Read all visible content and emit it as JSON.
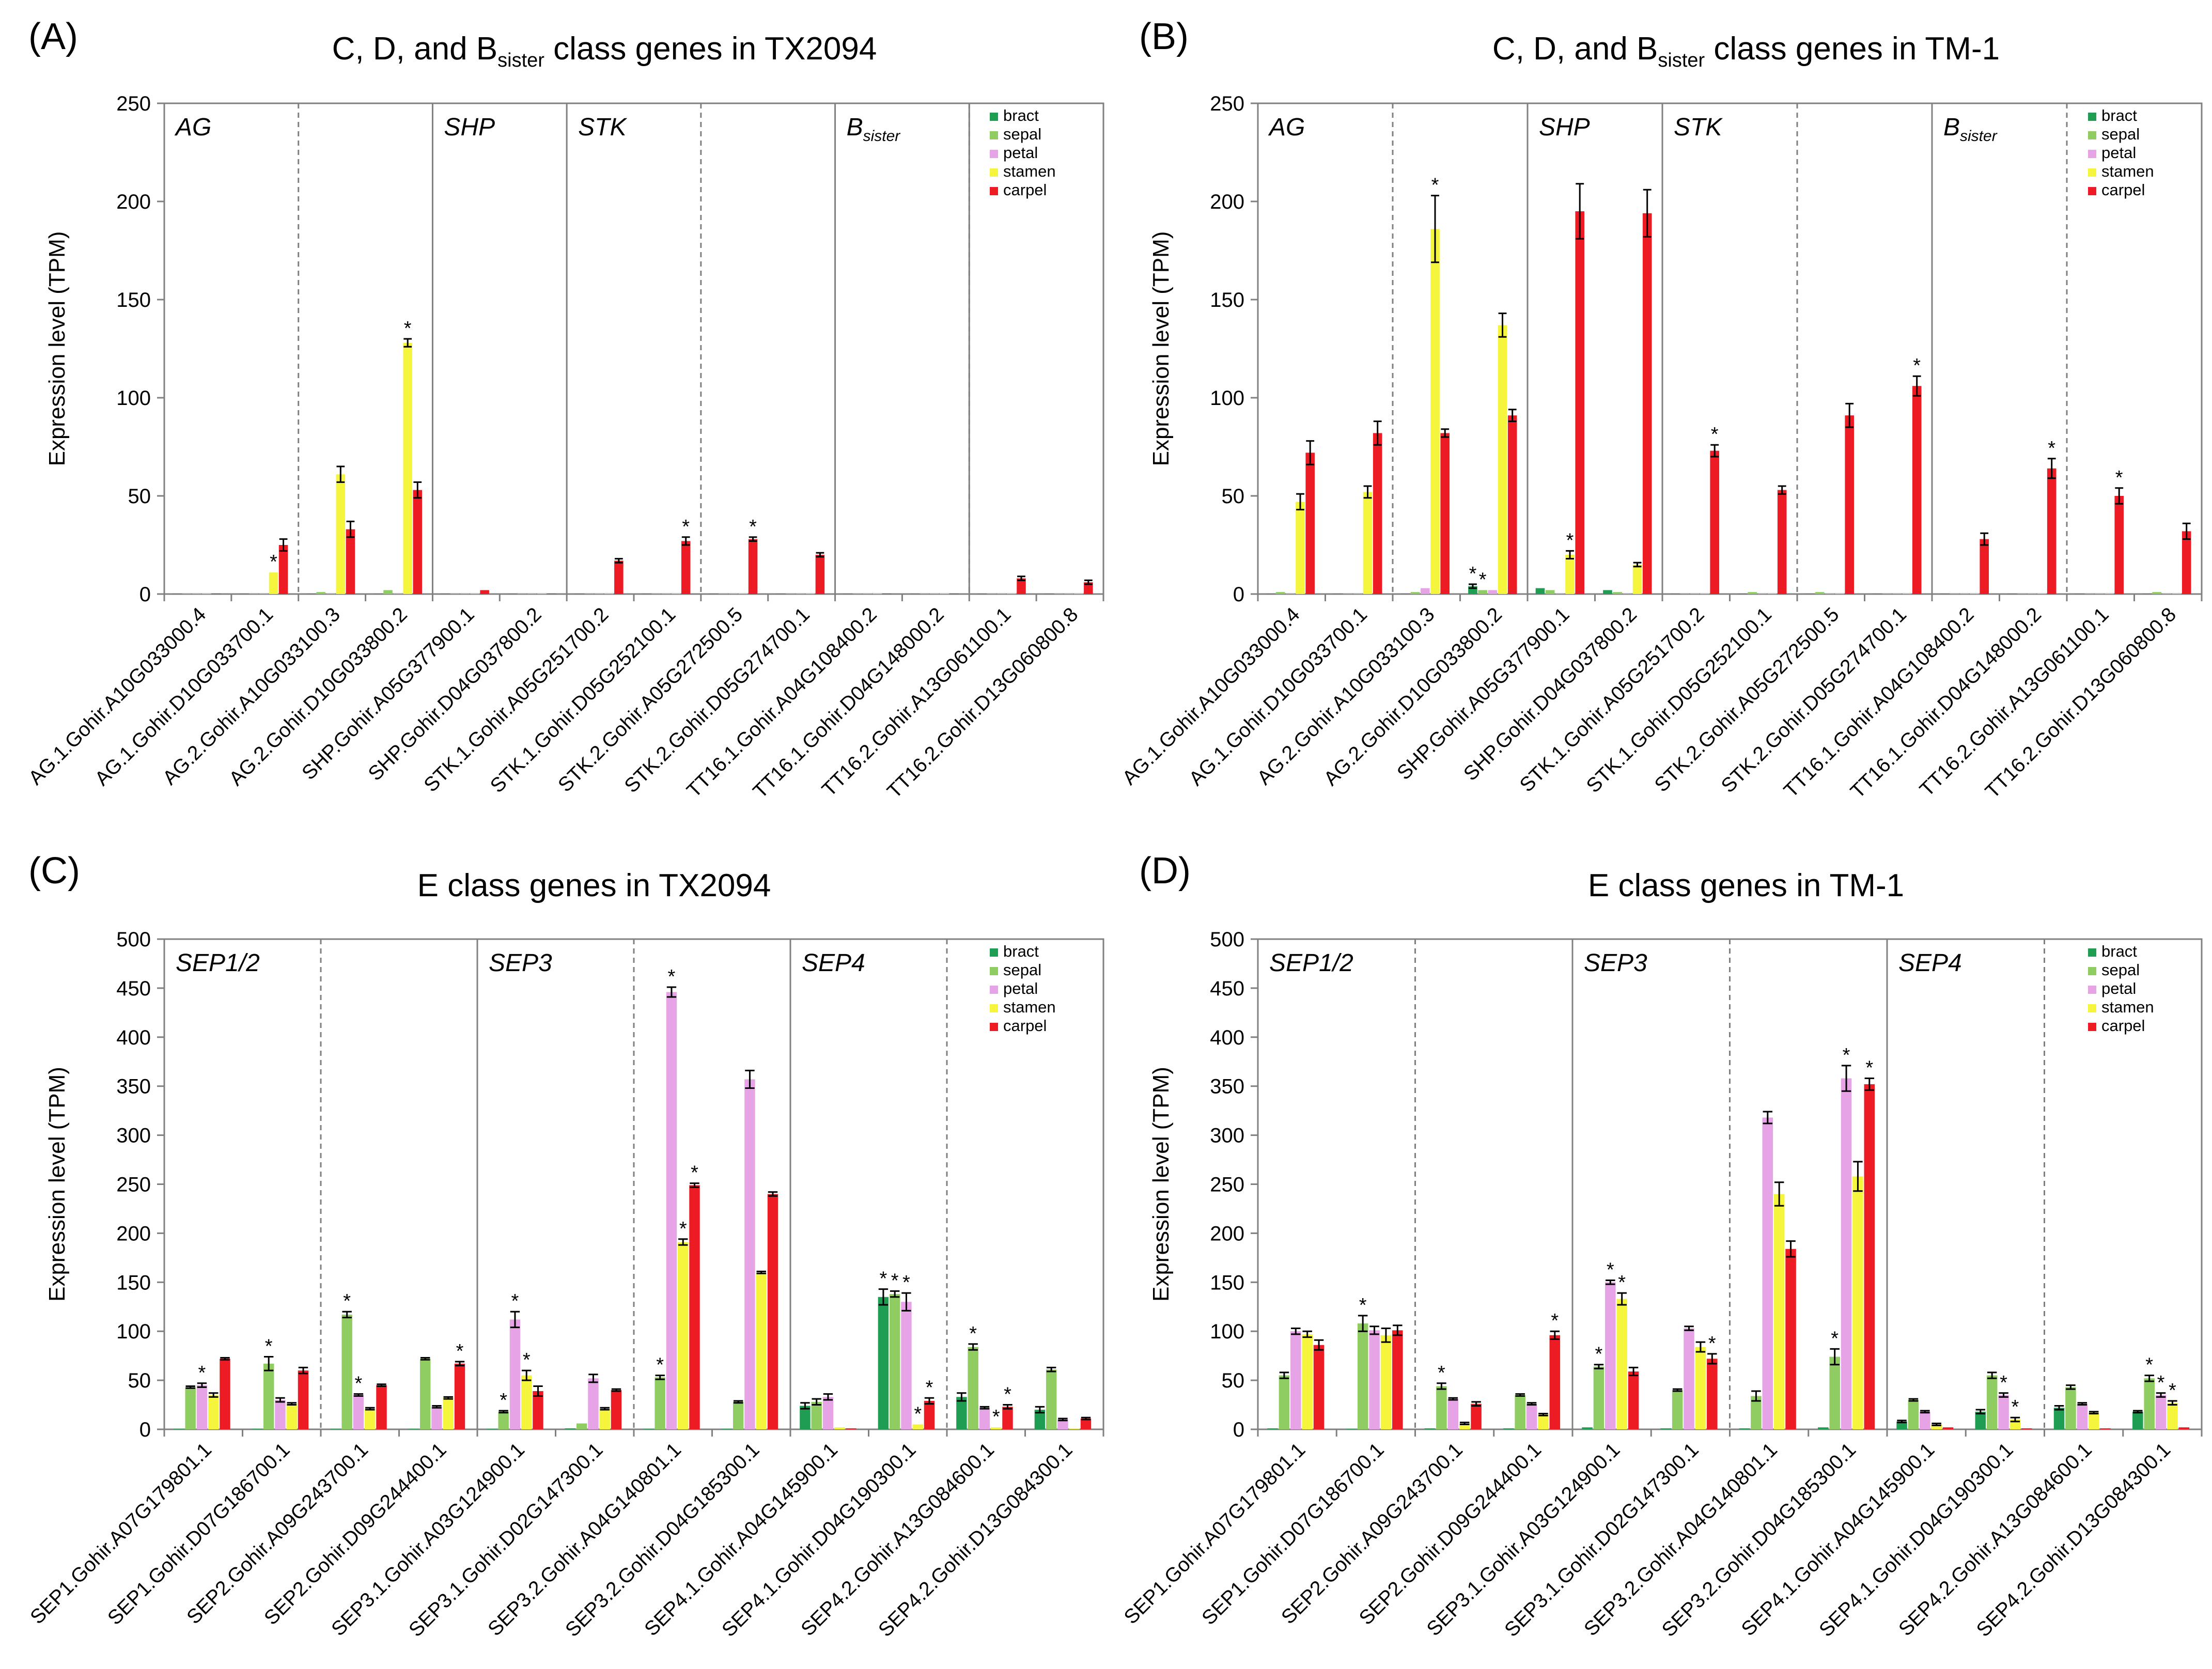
{
  "colors": {
    "bract": "#1f9e53",
    "sepal": "#8fcc62",
    "petal": "#e6a3e6",
    "stamen": "#f5f53d",
    "carpel": "#ed1c24",
    "axis": "#808080",
    "errorbar": "#000000"
  },
  "chart_data": [
    {
      "panel": "(A)",
      "type": "bar",
      "title_main": "C, D, and B",
      "title_sub": "sister",
      "title_end": " class genes in TX2094",
      "ylabel": "Expression level (TPM)",
      "ylim": [
        0,
        250
      ],
      "yticks": [
        0,
        50,
        100,
        150,
        200,
        250
      ],
      "legend": [
        "bract",
        "sepal",
        "petal",
        "stamen",
        "carpel"
      ],
      "legend_position": "top-right",
      "categories": [
        "AG.1.Gohir.A10G033000.4",
        "AG.1.Gohir.D10G033700.1",
        "AG.2.Gohir.A10G033100.3",
        "AG.2.Gohir.D10G033800.2",
        "SHP.Gohir.A05G377900.1",
        "SHP.Gohir.D04G037800.2",
        "STK.1.Gohir.A05G251700.2",
        "STK.1.Gohir.D05G252100.1",
        "STK.2.Gohir.A05G272500.5",
        "STK.2.Gohir.D05G274700.1",
        "TT16.1.Gohir.A04G108400.2",
        "TT16.1.Gohir.D04G148000.2",
        "TT16.2.Gohir.A13G061100.1",
        "TT16.2.Gohir.D13G060800.8"
      ],
      "groups": [
        {
          "label": "AG",
          "sub": "",
          "start": 0
        },
        {
          "label": "SHP",
          "sub": "",
          "start": 4
        },
        {
          "label": "STK",
          "sub": "",
          "start": 6
        },
        {
          "label": "B",
          "sub": "sister",
          "start": 10
        }
      ],
      "solid_dividers": [
        4,
        6,
        10,
        12
      ],
      "dashed_dividers": [
        2,
        8,
        12
      ],
      "series": [
        {
          "name": "bract",
          "values": [
            0,
            0,
            0,
            0,
            0,
            0,
            0,
            0,
            0,
            0,
            0,
            0,
            0,
            0
          ]
        },
        {
          "name": "sepal",
          "values": [
            0,
            0,
            1,
            2,
            0,
            0,
            0,
            0,
            0,
            0,
            0,
            0,
            0,
            0
          ]
        },
        {
          "name": "petal",
          "values": [
            0,
            0,
            0,
            0,
            0,
            0,
            0,
            0,
            0,
            0,
            0,
            0,
            0,
            0
          ]
        },
        {
          "name": "stamen",
          "values": [
            0,
            11,
            61,
            128,
            0,
            0,
            0,
            0,
            0,
            0,
            0,
            0,
            0,
            0
          ]
        },
        {
          "name": "carpel",
          "values": [
            0,
            25,
            33,
            53,
            2,
            0,
            17,
            27,
            28,
            20,
            0,
            0,
            8,
            6
          ]
        }
      ],
      "errors": [
        [
          0,
          0,
          0,
          0,
          0,
          0,
          0,
          0,
          0,
          0,
          0,
          0,
          0,
          0
        ],
        [
          0,
          0,
          0,
          0,
          0,
          0,
          0,
          0,
          0,
          0,
          0,
          0,
          0,
          0
        ],
        [
          0,
          0,
          0,
          0,
          0,
          0,
          0,
          0,
          0,
          0,
          0,
          0,
          0,
          0
        ],
        [
          0,
          0,
          4,
          2,
          0,
          0,
          0,
          0,
          0,
          0,
          0,
          0,
          0,
          0
        ],
        [
          0,
          3,
          4,
          4,
          0,
          0,
          1,
          2,
          1,
          1,
          0,
          0,
          1,
          1
        ]
      ],
      "stars": [
        [
          1,
          3
        ],
        [
          3,
          3
        ],
        [
          7,
          4
        ],
        [
          8,
          4
        ]
      ]
    },
    {
      "panel": "(B)",
      "type": "bar",
      "title_main": "C, D, and B",
      "title_sub": "sister",
      "title_end": " class genes in TM-1",
      "ylabel": "Expression level (TPM)",
      "ylim": [
        0,
        250
      ],
      "yticks": [
        0,
        50,
        100,
        150,
        200,
        250
      ],
      "legend": [
        "bract",
        "sepal",
        "petal",
        "stamen",
        "carpel"
      ],
      "legend_position": "top-right",
      "categories": [
        "AG.1.Gohir.A10G033000.4",
        "AG.1.Gohir.D10G033700.1",
        "AG.2.Gohir.A10G033100.3",
        "AG.2.Gohir.D10G033800.2",
        "SHP.Gohir.A05G377900.1",
        "SHP.Gohir.D04G037800.2",
        "STK.1.Gohir.A05G251700.2",
        "STK.1.Gohir.D05G252100.1",
        "STK.2.Gohir.A05G272500.5",
        "STK.2.Gohir.D05G274700.1",
        "TT16.1.Gohir.A04G108400.2",
        "TT16.1.Gohir.D04G148000.2",
        "TT16.2.Gohir.A13G061100.1",
        "TT16.2.Gohir.D13G060800.8"
      ],
      "groups": [
        {
          "label": "AG",
          "sub": "",
          "start": 0
        },
        {
          "label": "SHP",
          "sub": "",
          "start": 4
        },
        {
          "label": "STK",
          "sub": "",
          "start": 6
        },
        {
          "label": "B",
          "sub": "sister",
          "start": 10
        }
      ],
      "solid_dividers": [
        4,
        6,
        10
      ],
      "dashed_dividers": [
        2,
        8,
        12
      ],
      "series": [
        {
          "name": "bract",
          "values": [
            0,
            0,
            0,
            4,
            3,
            2,
            0,
            0,
            0,
            0,
            0,
            0,
            0,
            0
          ]
        },
        {
          "name": "sepal",
          "values": [
            1,
            0,
            1,
            2,
            2,
            1,
            0,
            1,
            1,
            0,
            0,
            0,
            0,
            1
          ]
        },
        {
          "name": "petal",
          "values": [
            0,
            0,
            3,
            2,
            0,
            0,
            0,
            0,
            0,
            0,
            0,
            0,
            0,
            0
          ]
        },
        {
          "name": "stamen",
          "values": [
            47,
            52,
            186,
            137,
            20,
            15,
            0,
            0,
            0,
            0,
            0,
            0,
            0,
            0
          ]
        },
        {
          "name": "carpel",
          "values": [
            72,
            82,
            82,
            91,
            195,
            194,
            73,
            53,
            91,
            106,
            28,
            64,
            50,
            32
          ]
        }
      ],
      "errors": [
        [
          0,
          0,
          0,
          1,
          0,
          0,
          0,
          0,
          0,
          0,
          0,
          0,
          0,
          0
        ],
        [
          0,
          0,
          0,
          0,
          0,
          0,
          0,
          0,
          0,
          0,
          0,
          0,
          0,
          0
        ],
        [
          0,
          0,
          0,
          0,
          0,
          0,
          0,
          0,
          0,
          0,
          0,
          0,
          0,
          0
        ],
        [
          4,
          3,
          17,
          6,
          2,
          1,
          0,
          0,
          0,
          0,
          0,
          0,
          0,
          0
        ],
        [
          6,
          6,
          2,
          3,
          14,
          12,
          3,
          2,
          6,
          5,
          3,
          5,
          4,
          4
        ]
      ],
      "stars": [
        [
          2,
          3
        ],
        [
          3,
          0
        ],
        [
          3,
          1
        ],
        [
          4,
          3
        ],
        [
          6,
          4
        ],
        [
          9,
          4
        ],
        [
          11,
          4
        ],
        [
          12,
          4
        ]
      ]
    },
    {
      "panel": "(C)",
      "type": "bar",
      "title_main": "E class genes in TX2094",
      "title_sub": "",
      "title_end": "",
      "ylabel": "Expression level (TPM)",
      "ylim": [
        0,
        500
      ],
      "yticks": [
        0,
        50,
        100,
        150,
        200,
        250,
        300,
        350,
        400,
        450,
        500
      ],
      "legend": [
        "bract",
        "sepal",
        "petal",
        "stamen",
        "carpel"
      ],
      "legend_position": "top-right",
      "categories": [
        "SEP1.Gohir.A07G179801.1",
        "SEP1.Gohir.D07G186700.1",
        "SEP2.Gohir.A09G243700.1",
        "SEP2.Gohir.D09G244400.1",
        "SEP3.1.Gohir.A03G124900.1",
        "SEP3.1.Gohir.D02G147300.1",
        "SEP3.2.Gohir.A04G140801.1",
        "SEP3.2.Gohir.D04G185300.1",
        "SEP4.1.Gohir.A04G145900.1",
        "SEP4.1.Gohir.D04G190300.1",
        "SEP4.2.Gohir.A13G084600.1",
        "SEP4.2.Gohir.D13G084300.1"
      ],
      "groups": [
        {
          "label": "SEP1/2",
          "sub": "",
          "start": 0
        },
        {
          "label": "SEP3",
          "sub": "",
          "start": 4
        },
        {
          "label": "SEP4",
          "sub": "",
          "start": 8
        }
      ],
      "solid_dividers": [
        4,
        8
      ],
      "dashed_dividers": [
        2,
        6,
        10
      ],
      "series": [
        {
          "name": "bract",
          "values": [
            0,
            0,
            0,
            0,
            0,
            1,
            0,
            0,
            24,
            135,
            33,
            20
          ]
        },
        {
          "name": "sepal",
          "values": [
            43,
            67,
            117,
            72,
            18,
            6,
            53,
            28,
            28,
            138,
            84,
            61
          ]
        },
        {
          "name": "petal",
          "values": [
            45,
            30,
            35,
            23,
            112,
            52,
            446,
            357,
            33,
            130,
            22,
            10
          ]
        },
        {
          "name": "stamen",
          "values": [
            35,
            26,
            21,
            32,
            55,
            21,
            191,
            160,
            2,
            5,
            2,
            1
          ]
        },
        {
          "name": "carpel",
          "values": [
            72,
            60,
            45,
            67,
            39,
            40,
            249,
            240,
            1,
            29,
            23,
            11
          ]
        }
      ],
      "errors": [
        [
          0,
          0,
          0,
          0,
          0,
          0,
          0,
          0,
          3,
          8,
          4,
          3
        ],
        [
          1,
          7,
          3,
          1,
          1,
          0,
          2,
          1,
          3,
          3,
          3,
          2
        ],
        [
          2,
          2,
          1,
          1,
          8,
          4,
          5,
          9,
          3,
          9,
          1,
          1
        ],
        [
          2,
          1,
          1,
          1,
          5,
          1,
          3,
          1,
          0,
          0,
          0,
          0
        ],
        [
          1,
          3,
          1,
          2,
          5,
          1,
          2,
          2,
          0,
          3,
          2,
          1
        ]
      ],
      "stars": [
        [
          0,
          2
        ],
        [
          1,
          1
        ],
        [
          2,
          1
        ],
        [
          2,
          2
        ],
        [
          3,
          4
        ],
        [
          4,
          1
        ],
        [
          4,
          2
        ],
        [
          4,
          3
        ],
        [
          6,
          1
        ],
        [
          6,
          2
        ],
        [
          6,
          3
        ],
        [
          6,
          4
        ],
        [
          9,
          0
        ],
        [
          9,
          1
        ],
        [
          9,
          2
        ],
        [
          9,
          3
        ],
        [
          9,
          4
        ],
        [
          10,
          1
        ],
        [
          10,
          3
        ],
        [
          10,
          4
        ]
      ]
    },
    {
      "panel": "(D)",
      "type": "bar",
      "title_main": "E class genes in TM-1",
      "title_sub": "",
      "title_end": "",
      "ylabel": "Expression level (TPM)",
      "ylim": [
        0,
        500
      ],
      "yticks": [
        0,
        50,
        100,
        150,
        200,
        250,
        300,
        350,
        400,
        450,
        500
      ],
      "legend": [
        "bract",
        "sepal",
        "petal",
        "stamen",
        "carpel"
      ],
      "legend_position": "top-right",
      "categories": [
        "SEP1.Gohir.A07G179801.1",
        "SEP1.Gohir.D07G186700.1",
        "SEP2.Gohir.A09G243700.1",
        "SEP2.Gohir.D09G244400.1",
        "SEP3.1.Gohir.A03G124900.1",
        "SEP3.1.Gohir.D02G147300.1",
        "SEP3.2.Gohir.A04G140801.1",
        "SEP3.2.Gohir.D04G185300.1",
        "SEP4.1.Gohir.A04G145900.1",
        "SEP4.1.Gohir.D04G190300.1",
        "SEP4.2.Gohir.A13G084600.1",
        "SEP4.2.Gohir.D13G084300.1"
      ],
      "groups": [
        {
          "label": "SEP1/2",
          "sub": "",
          "start": 0
        },
        {
          "label": "SEP3",
          "sub": "",
          "start": 4
        },
        {
          "label": "SEP4",
          "sub": "",
          "start": 8
        }
      ],
      "solid_dividers": [
        4,
        8
      ],
      "dashed_dividers": [
        2,
        6,
        10
      ],
      "series": [
        {
          "name": "bract",
          "values": [
            1,
            0,
            1,
            1,
            2,
            1,
            1,
            2,
            8,
            18,
            22,
            18
          ]
        },
        {
          "name": "sepal",
          "values": [
            55,
            108,
            44,
            35,
            64,
            40,
            34,
            74,
            30,
            55,
            43,
            52
          ]
        },
        {
          "name": "petal",
          "values": [
            100,
            101,
            31,
            26,
            150,
            103,
            318,
            358,
            18,
            35,
            26,
            35
          ]
        },
        {
          "name": "stamen",
          "values": [
            97,
            96,
            6,
            15,
            133,
            84,
            240,
            258,
            5,
            10,
            17,
            27
          ]
        },
        {
          "name": "carpel",
          "values": [
            86,
            101,
            26,
            96,
            59,
            72,
            184,
            352,
            2,
            1,
            1,
            2
          ]
        }
      ],
      "errors": [
        [
          0,
          0,
          0,
          0,
          0,
          0,
          0,
          0,
          1,
          2,
          2,
          1
        ],
        [
          3,
          8,
          3,
          1,
          2,
          1,
          5,
          8,
          1,
          3,
          2,
          3
        ],
        [
          3,
          4,
          1,
          1,
          2,
          2,
          6,
          13,
          1,
          2,
          1,
          2
        ],
        [
          3,
          7,
          1,
          1,
          6,
          5,
          12,
          15,
          1,
          2,
          1,
          2
        ],
        [
          5,
          5,
          2,
          4,
          4,
          5,
          8,
          6,
          0,
          0,
          0,
          0
        ]
      ],
      "stars": [
        [
          1,
          1
        ],
        [
          2,
          1
        ],
        [
          3,
          4
        ],
        [
          4,
          1
        ],
        [
          4,
          2
        ],
        [
          4,
          3
        ],
        [
          5,
          4
        ],
        [
          7,
          1
        ],
        [
          7,
          2
        ],
        [
          7,
          4
        ],
        [
          9,
          2
        ],
        [
          9,
          3
        ],
        [
          11,
          1
        ],
        [
          11,
          2
        ],
        [
          11,
          3
        ]
      ]
    }
  ]
}
